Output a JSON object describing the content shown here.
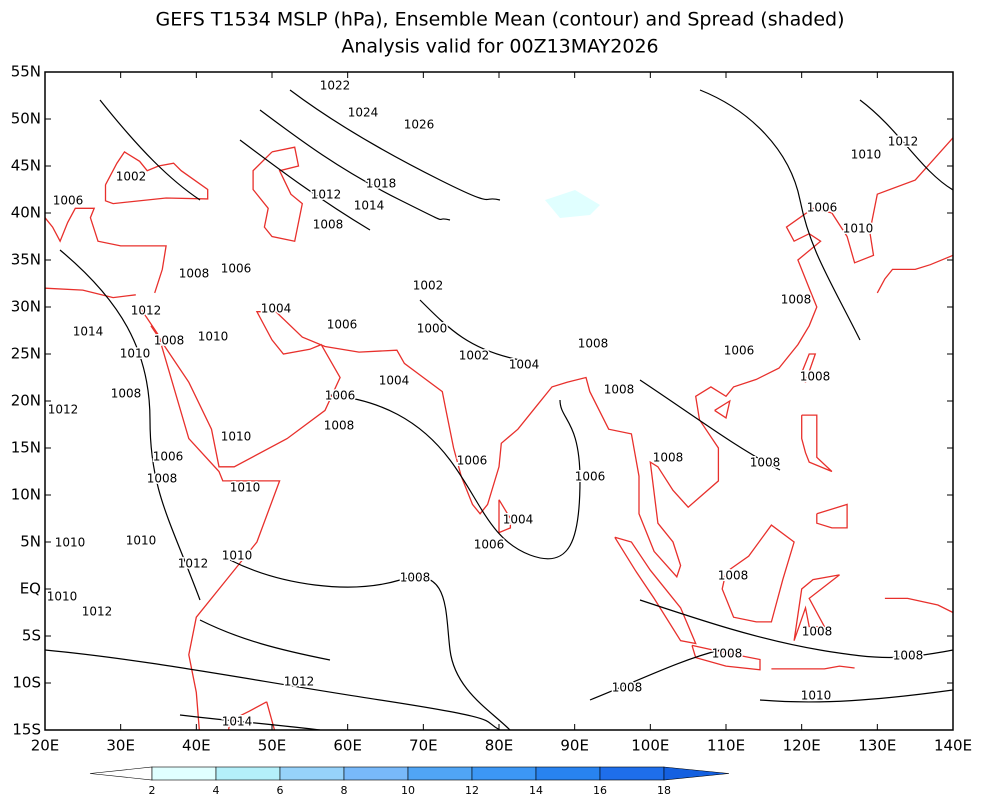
{
  "title": "GEFS T1534 MSLP (hPa), Ensemble Mean (contour) and Spread (shaded)",
  "subtitle": "Analysis valid for 00Z13MAY2026",
  "lat_labels": [
    "55N",
    "50N",
    "45N",
    "40N",
    "35N",
    "30N",
    "25N",
    "20N",
    "15N",
    "10N",
    "5N",
    "EQ",
    "5S",
    "10S",
    "15S"
  ],
  "lon_labels": [
    "20E",
    "30E",
    "40E",
    "50E",
    "60E",
    "70E",
    "80E",
    "90E",
    "100E",
    "110E",
    "120E",
    "130E",
    "140E"
  ],
  "contour_labels": [
    "1022",
    "1024",
    "1026",
    "1018",
    "1012",
    "1014",
    "1008",
    "1002",
    "1006",
    "1008",
    "1006",
    "1004",
    "1006",
    "1002",
    "1000",
    "1012",
    "1014",
    "1008",
    "1010",
    "1010",
    "1002",
    "1004",
    "1004",
    "1008",
    "1008",
    "1006",
    "1008",
    "1006",
    "1010",
    "1012",
    "1010",
    "1008",
    "1012",
    "1008",
    "1006",
    "1008",
    "1010",
    "1006",
    "1008",
    "1010",
    "1006",
    "1006",
    "1008",
    "1008",
    "1004",
    "1006",
    "1010",
    "1010",
    "1012",
    "1010",
    "1008",
    "1010",
    "1012",
    "1008",
    "1008",
    "1008",
    "1008",
    "1012",
    "1008",
    "1010",
    "1014"
  ],
  "colorbar_labels": [
    "2",
    "4",
    "6",
    "8",
    "10",
    "12",
    "14",
    "16",
    "18"
  ]
}
